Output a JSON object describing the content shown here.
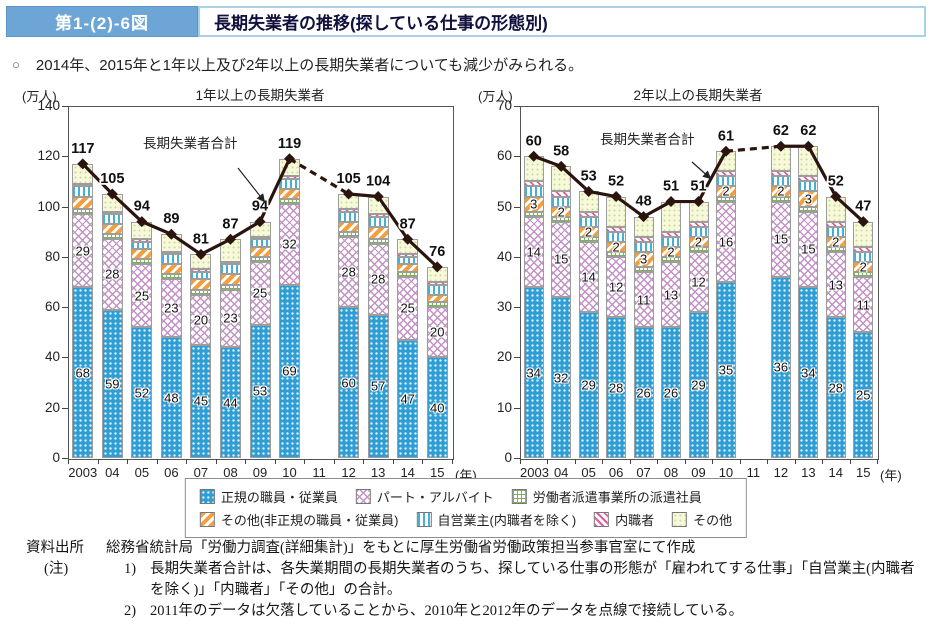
{
  "header": {
    "figure_label": "第1-(2)-6図",
    "title": "長期失業者の推移(探している仕事の形態別)"
  },
  "summary": {
    "marker": "○",
    "text": "2014年、2015年と1年以上及び2年以上の長期失業者についても減少がみられる。"
  },
  "colors": {
    "header_blue": "#6da6d6",
    "header_border_blue": "#a9d2e8",
    "line_color": "#2b140e",
    "seiki_blue": "#2e9ed4",
    "part_pink": "#c292c4",
    "haken_green": "#7cb35a",
    "hiseiki_orange": "#f59f3c",
    "jiei_cyan": "#45b0d6",
    "naishoku_magenta": "#e25c9d",
    "sonota_yellow": "#f8f9da"
  },
  "legend": {
    "items": [
      {
        "key": "seiki",
        "label": "正規の職員・従業員"
      },
      {
        "key": "part",
        "label": "パート・アルバイト"
      },
      {
        "key": "haken",
        "label": "労働者派遣事業所の派遣社員"
      },
      {
        "key": "hiseiki",
        "label": "その他(非正規の職員・従業員)"
      },
      {
        "key": "jiei",
        "label": "自営業主(内職者を除く)"
      },
      {
        "key": "naishoku",
        "label": "内職者"
      },
      {
        "key": "sonota",
        "label": "その他"
      }
    ]
  },
  "chart_data": [
    {
      "type": "bar",
      "subtype": "stacked-bar-with-total-line",
      "title": "1年以上の長期失業者",
      "unit_label": "(万人)",
      "x_suffix_label": "(年)",
      "ylim": [
        0,
        140
      ],
      "ytick_step": 20,
      "grid": false,
      "categories": [
        "2003",
        "04",
        "05",
        "06",
        "07",
        "08",
        "09",
        "10",
        "11",
        "12",
        "13",
        "14",
        "15"
      ],
      "missing_year_note": "2011 missing, bridged with dashed line",
      "line": {
        "name": "長期失業者合計",
        "values": [
          117,
          105,
          94,
          89,
          81,
          87,
          94,
          119,
          null,
          105,
          104,
          87,
          76
        ]
      },
      "series": [
        {
          "key": "seiki",
          "name": "正規の職員・従業員",
          "show_labels": true,
          "values": [
            68,
            59,
            52,
            48,
            45,
            44,
            53,
            69,
            null,
            60,
            57,
            47,
            40
          ]
        },
        {
          "key": "part",
          "name": "パート・アルバイト",
          "show_labels": true,
          "values": [
            29,
            28,
            25,
            23,
            20,
            23,
            25,
            32,
            null,
            28,
            28,
            25,
            20
          ]
        },
        {
          "key": "haken",
          "name": "労働者派遣事業所の派遣社員",
          "show_labels": false,
          "values": [
            2,
            2,
            2,
            2,
            2,
            2,
            2,
            2,
            null,
            2,
            2,
            2,
            2
          ]
        },
        {
          "key": "hiseiki",
          "name": "その他(非正規の職員・従業員)",
          "show_labels": false,
          "values": [
            5,
            4,
            4,
            4,
            4,
            4,
            4,
            4,
            null,
            4,
            5,
            3,
            3
          ]
        },
        {
          "key": "jiei",
          "name": "自営業主(内職者を除く)",
          "show_labels": false,
          "values": [
            4,
            4,
            3,
            4,
            3,
            4,
            3,
            4,
            null,
            4,
            4,
            3,
            4
          ]
        },
        {
          "key": "naishoku",
          "name": "内職者",
          "show_labels": false,
          "values": [
            1,
            1,
            1,
            1,
            1,
            1,
            1,
            1,
            null,
            1,
            1,
            1,
            1
          ]
        },
        {
          "key": "sonota",
          "name": "その他",
          "show_labels": false,
          "values": [
            8,
            7,
            7,
            7,
            6,
            9,
            6,
            7,
            null,
            6,
            7,
            6,
            6
          ]
        }
      ]
    },
    {
      "type": "bar",
      "subtype": "stacked-bar-with-total-line",
      "title": "2年以上の長期失業者",
      "unit_label": "(万人)",
      "x_suffix_label": "(年)",
      "ylim": [
        0,
        70
      ],
      "ytick_step": 10,
      "grid": false,
      "categories": [
        "2003",
        "04",
        "05",
        "06",
        "07",
        "08",
        "09",
        "10",
        "11",
        "12",
        "13",
        "14",
        "15"
      ],
      "missing_year_note": "2011 missing, bridged with dashed line",
      "line": {
        "name": "長期失業者合計",
        "values": [
          60,
          58,
          53,
          52,
          48,
          51,
          51,
          61,
          null,
          62,
          62,
          52,
          47
        ]
      },
      "series": [
        {
          "key": "seiki",
          "name": "正規の職員・従業員",
          "show_labels": true,
          "values": [
            34,
            32,
            29,
            28,
            26,
            26,
            29,
            35,
            null,
            36,
            34,
            28,
            25
          ]
        },
        {
          "key": "part",
          "name": "パート・アルバイト",
          "show_labels": true,
          "values": [
            14,
            15,
            14,
            12,
            11,
            13,
            12,
            16,
            null,
            15,
            15,
            13,
            11
          ]
        },
        {
          "key": "haken",
          "name": "労働者派遣事業所の派遣社員",
          "show_labels": false,
          "values": [
            1,
            1,
            1,
            1,
            1,
            1,
            1,
            1,
            null,
            1,
            1,
            1,
            1
          ]
        },
        {
          "key": "hiseiki",
          "name": "その他(非正規の職員・従業員)",
          "show_labels": true,
          "values": [
            3,
            2,
            2,
            2,
            3,
            2,
            2,
            2,
            null,
            2,
            3,
            2,
            2
          ]
        },
        {
          "key": "jiei",
          "name": "自営業主(内職者を除く)",
          "show_labels": false,
          "values": [
            2,
            2,
            2,
            2,
            2,
            2,
            2,
            2,
            null,
            2,
            2,
            2,
            2
          ]
        },
        {
          "key": "naishoku",
          "name": "内職者",
          "show_labels": false,
          "values": [
            1,
            1,
            1,
            1,
            1,
            1,
            1,
            1,
            null,
            1,
            1,
            1,
            1
          ]
        },
        {
          "key": "sonota",
          "name": "その他",
          "show_labels": false,
          "values": [
            5,
            5,
            4,
            6,
            4,
            6,
            4,
            4,
            null,
            5,
            6,
            5,
            5
          ]
        }
      ]
    }
  ],
  "footer": {
    "source_label": "資料出所",
    "source_text": "総務省統計局「労働力調査(詳細集計)」をもとに厚生労働省労働政策担当参事官室にて作成",
    "note_label": "(注)",
    "notes": [
      {
        "num": "1)",
        "text": "長期失業者合計は、各失業期間の長期失業者のうち、探している仕事の形態が「雇われてする仕事」「自営業主(内職者を除く)」「内職者」「その他」の合計。"
      },
      {
        "num": "2)",
        "text": "2011年のデータは欠落していることから、2010年と2012年のデータを点線で接続している。"
      }
    ]
  }
}
